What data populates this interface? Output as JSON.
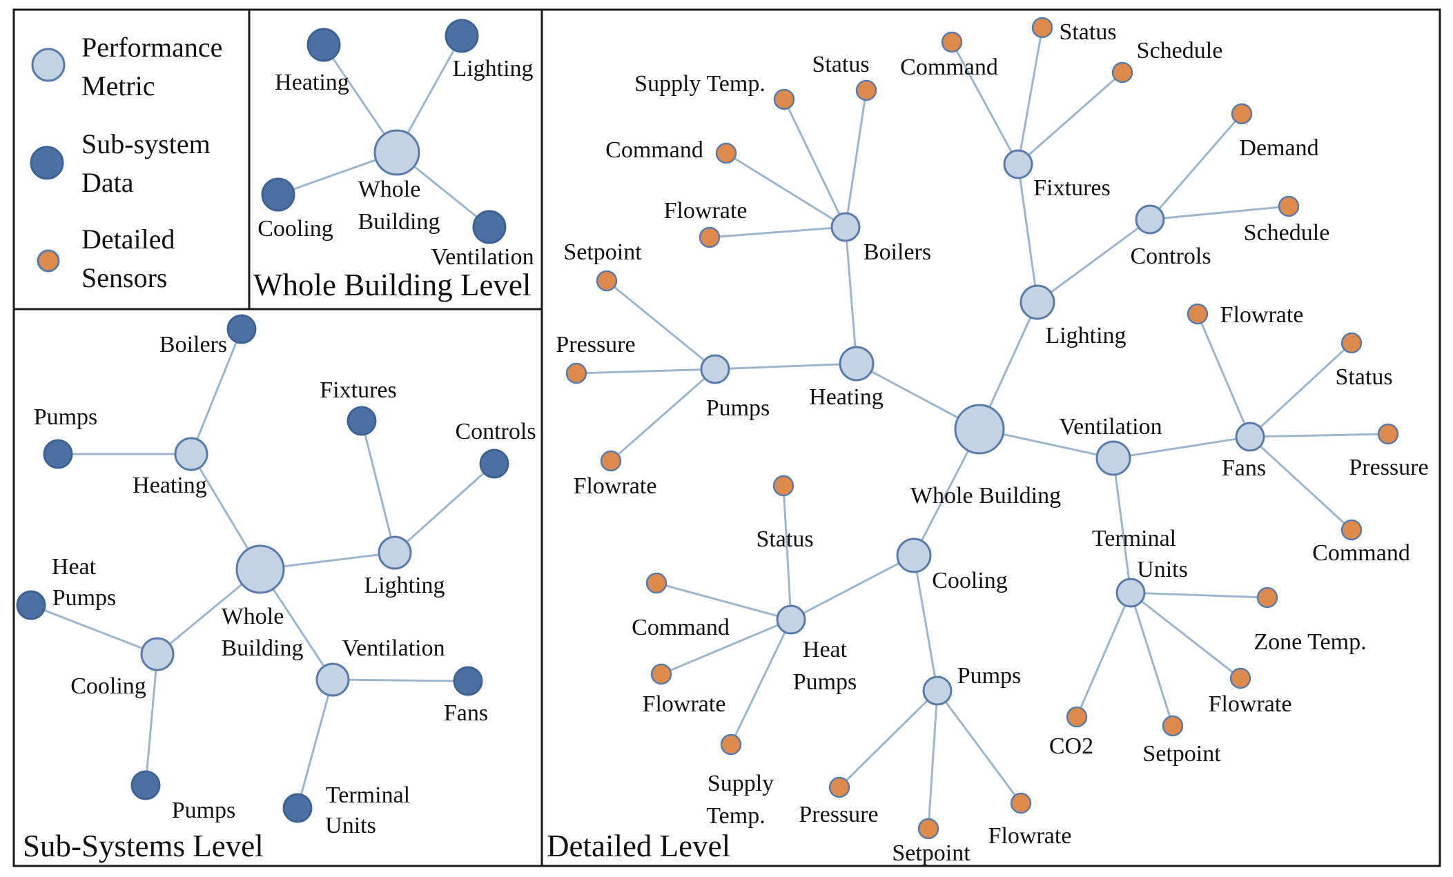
{
  "colors": {
    "metric_fill": "#c4d3e3",
    "metric_stroke": "#5a7aa8",
    "subsystem_fill": "#4c70a4",
    "subsystem_stroke": "#3f6294",
    "sensor_fill": "#dd8a4c",
    "sensor_stroke": "#5a7aa8",
    "edge": "#9db6cd",
    "frame": "#1a1a1a"
  },
  "legend": {
    "items": [
      {
        "kind": "metric",
        "label": "Performance Metric"
      },
      {
        "kind": "subsystem",
        "label": "Sub-system Data"
      },
      {
        "kind": "sensor",
        "label": "Detailed Sensors"
      }
    ]
  },
  "panels": {
    "whole": {
      "title": "Whole Building Level",
      "root": {
        "label": "Whole Building",
        "kind": "metric"
      },
      "children": [
        {
          "label": "Heating",
          "kind": "subsystem"
        },
        {
          "label": "Lighting",
          "kind": "subsystem"
        },
        {
          "label": "Cooling",
          "kind": "subsystem"
        },
        {
          "label": "Ventilation",
          "kind": "subsystem"
        }
      ]
    },
    "subsystems": {
      "title": "Sub-Systems Level",
      "root": {
        "label": "Whole Building",
        "kind": "metric"
      },
      "children": [
        {
          "label": "Heating",
          "kind": "metric",
          "children": [
            {
              "label": "Boilers",
              "kind": "subsystem"
            },
            {
              "label": "Pumps",
              "kind": "subsystem"
            }
          ]
        },
        {
          "label": "Lighting",
          "kind": "metric",
          "children": [
            {
              "label": "Fixtures",
              "kind": "subsystem"
            },
            {
              "label": "Controls",
              "kind": "subsystem"
            }
          ]
        },
        {
          "label": "Cooling",
          "kind": "metric",
          "children": [
            {
              "label": "Heat Pumps",
              "kind": "subsystem"
            },
            {
              "label": "Pumps",
              "kind": "subsystem"
            }
          ]
        },
        {
          "label": "Ventilation",
          "kind": "metric",
          "children": [
            {
              "label": "Fans",
              "kind": "subsystem"
            },
            {
              "label": "Terminal Units",
              "kind": "subsystem"
            }
          ]
        }
      ]
    },
    "detailed": {
      "title": "Detailed Level",
      "root": {
        "label": "Whole Building",
        "kind": "metric"
      },
      "children": [
        {
          "label": "Heating",
          "kind": "metric",
          "children": [
            {
              "label": "Boilers",
              "kind": "metric",
              "children": [
                {
                  "label": "Supply Temp.",
                  "kind": "sensor"
                },
                {
                  "label": "Status",
                  "kind": "sensor"
                },
                {
                  "label": "Command",
                  "kind": "sensor"
                },
                {
                  "label": "Flowrate",
                  "kind": "sensor"
                }
              ]
            },
            {
              "label": "Pumps",
              "kind": "metric",
              "children": [
                {
                  "label": "Setpoint",
                  "kind": "sensor"
                },
                {
                  "label": "Pressure",
                  "kind": "sensor"
                },
                {
                  "label": "Flowrate",
                  "kind": "sensor"
                }
              ]
            }
          ]
        },
        {
          "label": "Lighting",
          "kind": "metric",
          "children": [
            {
              "label": "Fixtures",
              "kind": "metric",
              "children": [
                {
                  "label": "Command",
                  "kind": "sensor"
                },
                {
                  "label": "Status",
                  "kind": "sensor"
                },
                {
                  "label": "Schedule",
                  "kind": "sensor"
                }
              ]
            },
            {
              "label": "Controls",
              "kind": "metric",
              "children": [
                {
                  "label": "Demand",
                  "kind": "sensor"
                },
                {
                  "label": "Schedule",
                  "kind": "sensor"
                }
              ]
            }
          ]
        },
        {
          "label": "Ventilation",
          "kind": "metric",
          "children": [
            {
              "label": "Fans",
              "kind": "metric",
              "children": [
                {
                  "label": "Flowrate",
                  "kind": "sensor"
                },
                {
                  "label": "Status",
                  "kind": "sensor"
                },
                {
                  "label": "Pressure",
                  "kind": "sensor"
                },
                {
                  "label": "Command",
                  "kind": "sensor"
                }
              ]
            },
            {
              "label": "Terminal Units",
              "kind": "metric",
              "children": [
                {
                  "label": "Zone Temp.",
                  "kind": "sensor"
                },
                {
                  "label": "Flowrate",
                  "kind": "sensor"
                },
                {
                  "label": "Setpoint",
                  "kind": "sensor"
                },
                {
                  "label": "CO2",
                  "kind": "sensor"
                }
              ]
            }
          ]
        },
        {
          "label": "Cooling",
          "kind": "metric",
          "children": [
            {
              "label": "Heat Pumps",
              "kind": "metric",
              "children": [
                {
                  "label": "Status",
                  "kind": "sensor"
                },
                {
                  "label": "Command",
                  "kind": "sensor"
                },
                {
                  "label": "Flowrate",
                  "kind": "sensor"
                },
                {
                  "label": "Supply Temp.",
                  "kind": "sensor"
                }
              ]
            },
            {
              "label": "Pumps",
              "kind": "metric",
              "children": [
                {
                  "label": "Pressure",
                  "kind": "sensor"
                },
                {
                  "label": "Setpoint",
                  "kind": "sensor"
                },
                {
                  "label": "Flowrate",
                  "kind": "sensor"
                }
              ]
            }
          ]
        }
      ]
    }
  }
}
